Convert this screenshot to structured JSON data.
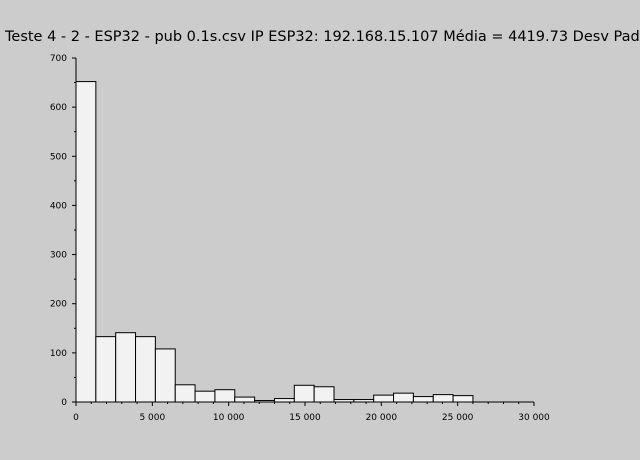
{
  "chart_data": {
    "type": "bar",
    "title": "Teste 4 - 2 - ESP32 - pub 0.1s.csv IP ESP32: 192.168.15.107 Média = 4419.73 Desv Pad",
    "xlabel": "",
    "ylabel": "",
    "xlim": [
      0,
      30000
    ],
    "ylim": [
      0,
      700
    ],
    "x_ticks": [
      0,
      5000,
      10000,
      15000,
      20000,
      25000,
      30000
    ],
    "x_tick_labels": [
      "0",
      "5 000",
      "10 000",
      "15 000",
      "20 000",
      "25 000",
      "30 000"
    ],
    "y_ticks": [
      0,
      100,
      200,
      300,
      400,
      500,
      600,
      700
    ],
    "y_tick_labels": [
      "0",
      "100",
      "200",
      "300",
      "400",
      "500",
      "600",
      "700"
    ],
    "bin_edges": [
      0,
      1300,
      2600,
      3900,
      5200,
      6500,
      7800,
      9100,
      10400,
      11700,
      13000,
      14300,
      15600,
      16900,
      18200,
      19500,
      20800,
      22100,
      23400,
      24700,
      26000
    ],
    "values": [
      652,
      133,
      141,
      133,
      108,
      35,
      22,
      25,
      10,
      3,
      7,
      34,
      31,
      5,
      5,
      14,
      18,
      11,
      15,
      13
    ],
    "grid": false,
    "bar_fill": "#f2f2f2",
    "bar_stroke": "#000000",
    "background": "#cccccc"
  }
}
